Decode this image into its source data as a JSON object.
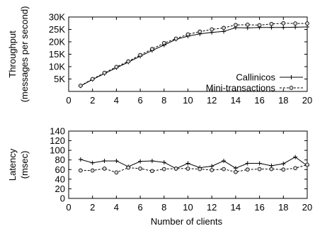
{
  "chart_data": [
    {
      "type": "line",
      "xlabel": "",
      "ylabel_lines": [
        "Throughput",
        "(messages per second)"
      ],
      "xlim": [
        0,
        20
      ],
      "ylim": [
        0,
        30000
      ],
      "xticks": [
        0,
        2,
        4,
        6,
        8,
        10,
        12,
        14,
        16,
        18,
        20
      ],
      "xtick_labels": [
        "0",
        "2",
        "4",
        "6",
        "8",
        "10",
        "12",
        "14",
        "16",
        "18",
        "20"
      ],
      "yticks": [
        5000,
        10000,
        15000,
        20000,
        25000,
        30000
      ],
      "ytick_labels": [
        "5K",
        "10K",
        "15K",
        "20K",
        "25K",
        "30K"
      ],
      "grid": false,
      "legend_position": "bottom-right",
      "x": [
        1,
        2,
        3,
        4,
        5,
        6,
        7,
        8,
        9,
        10,
        11,
        12,
        13,
        14,
        15,
        16,
        17,
        18,
        19,
        20
      ],
      "series": [
        {
          "name": "Callinicos",
          "marker": "plus",
          "line": "solid",
          "values": [
            2200,
            4800,
            7200,
            9500,
            11800,
            14200,
            16500,
            18700,
            21000,
            22300,
            23200,
            23800,
            24200,
            25700,
            25600,
            25800,
            25800,
            25800,
            25900,
            26000
          ]
        },
        {
          "name": "Mini-transactions",
          "marker": "circle",
          "line": "dashed",
          "values": [
            2300,
            5000,
            7500,
            9900,
            12100,
            14700,
            17100,
            19500,
            21300,
            23000,
            24100,
            25000,
            25600,
            26800,
            26900,
            26700,
            27200,
            27500,
            27400,
            27400
          ]
        }
      ]
    },
    {
      "type": "line",
      "xlabel": "Number of clients",
      "ylabel_lines": [
        "Latency",
        "(msec)"
      ],
      "xlim": [
        0,
        20
      ],
      "ylim": [
        0,
        140
      ],
      "xticks": [
        0,
        2,
        4,
        6,
        8,
        10,
        12,
        14,
        16,
        18,
        20
      ],
      "xtick_labels": [
        "0",
        "2",
        "4",
        "6",
        "8",
        "10",
        "12",
        "14",
        "16",
        "18",
        "20"
      ],
      "yticks": [
        0,
        20,
        40,
        60,
        80,
        100,
        120,
        140
      ],
      "ytick_labels": [
        "0",
        "20",
        "40",
        "60",
        "80",
        "100",
        "120",
        "140"
      ],
      "grid": false,
      "x": [
        1,
        2,
        3,
        4,
        5,
        6,
        7,
        8,
        9,
        10,
        11,
        12,
        13,
        14,
        15,
        16,
        17,
        18,
        19,
        20
      ],
      "series": [
        {
          "name": "Callinicos",
          "marker": "plus",
          "line": "solid",
          "values": [
            81,
            74,
            78,
            78,
            66,
            77,
            78,
            75,
            62,
            73,
            64,
            67,
            78,
            63,
            73,
            73,
            68,
            72,
            86,
            68
          ]
        },
        {
          "name": "Mini-transactions",
          "marker": "circle",
          "line": "dashed",
          "values": [
            58,
            58,
            62,
            54,
            64,
            62,
            57,
            61,
            62,
            62,
            61,
            59,
            61,
            55,
            60,
            61,
            61,
            60,
            63,
            70
          ]
        }
      ]
    }
  ]
}
